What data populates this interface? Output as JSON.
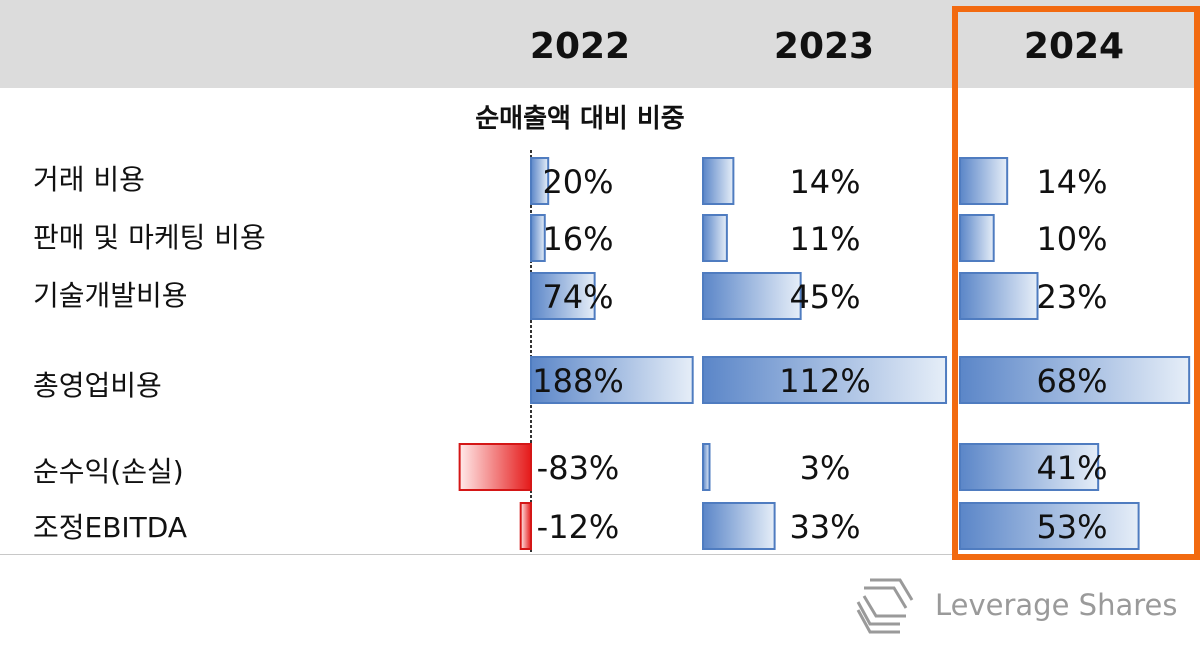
{
  "chart_data": {
    "type": "table",
    "title": "",
    "subtitle": "순매출액 대비 비중",
    "years": [
      "2022",
      "2023",
      "2024"
    ],
    "highlight_year": "2024",
    "unit": "%",
    "rows": [
      {
        "label": "거래 비용",
        "values": [
          20,
          14,
          14
        ],
        "display": [
          "20%",
          "14%",
          "14%"
        ]
      },
      {
        "label": "판매 및 마케팅 비용",
        "values": [
          16,
          11,
          10
        ],
        "display": [
          "16%",
          "11%",
          "10%"
        ]
      },
      {
        "label": "기술개발비용",
        "values": [
          74,
          45,
          23
        ],
        "display": [
          "74%",
          "45%",
          "23%"
        ]
      },
      {
        "label": "총영업비용",
        "values": [
          188,
          112,
          68
        ],
        "display": [
          "188%",
          "112%",
          "68%"
        ]
      },
      {
        "label": "순수익(손실)",
        "values": [
          -83,
          3,
          41
        ],
        "display": [
          "-83%",
          "3%",
          "41%"
        ]
      },
      {
        "label": "조정EBITDA",
        "values": [
          -12,
          33,
          53
        ],
        "display": [
          "-12%",
          "33%",
          "53%"
        ]
      }
    ],
    "colors": {
      "positive_dark": "#5b86c8",
      "positive_light": "#e6eef8",
      "positive_border": "#4f7cc0",
      "negative_dark": "#e51a1a",
      "negative_light": "#ffeaea",
      "negative_border": "#d41616",
      "highlight_border": "#f26a10",
      "header_bg": "#dcdcdc"
    }
  },
  "brand": {
    "logo_text": "Leverage Shares",
    "logo_icon": "leverage-shares-logo-icon"
  }
}
